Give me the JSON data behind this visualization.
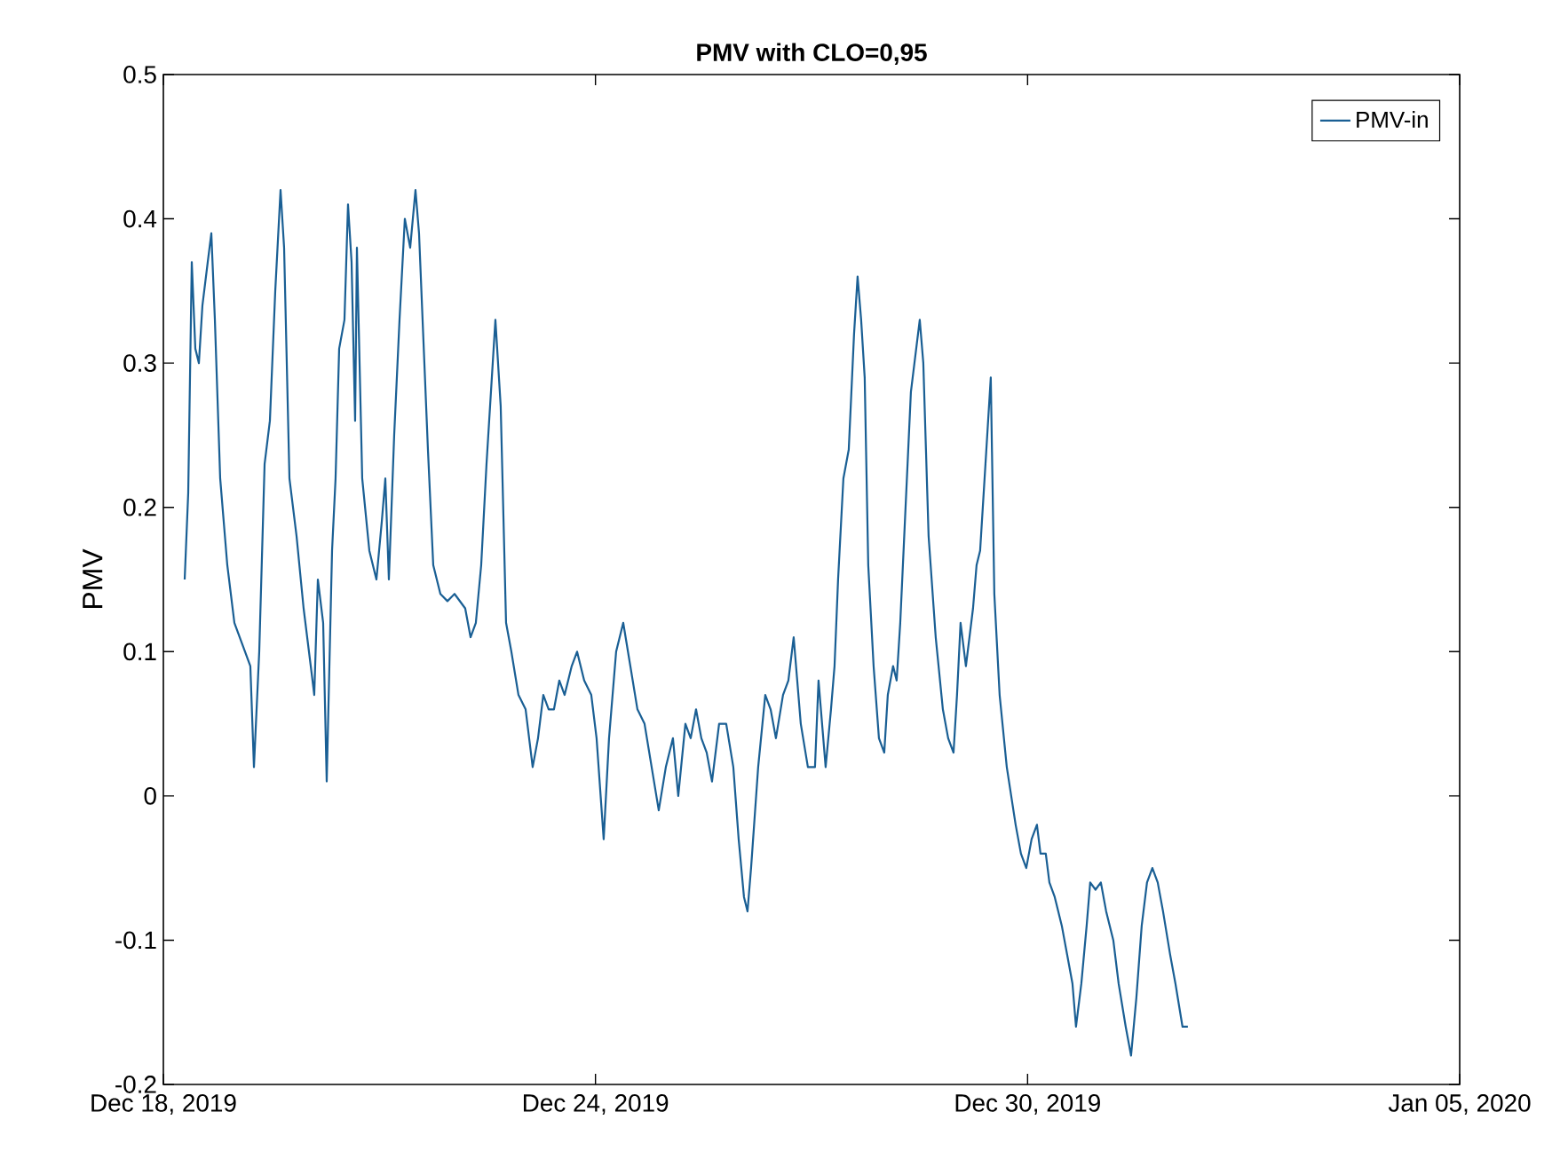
{
  "chart_data": {
    "type": "line",
    "title": "PMV with CLO=0,95",
    "ylabel": "PMV",
    "x": [
      "2019-12-18T07:06",
      "2019-12-18T08:17",
      "2019-12-18T09:28",
      "2019-12-18T10:39",
      "2019-12-18T11:50",
      "2019-12-18T13:01",
      "2019-12-18T14:47",
      "2019-12-18T15:59",
      "2019-12-18T17:10",
      "2019-12-18T18:56",
      "2019-12-18T21:18",
      "2019-12-18T23:40",
      "2019-12-19T03:13",
      "2019-12-19T04:59",
      "2019-12-19T06:11",
      "2019-12-19T07:57",
      "2019-12-19T09:44",
      "2019-12-19T11:30",
      "2019-12-19T13:17",
      "2019-12-19T15:03",
      "2019-12-19T16:14",
      "2019-12-19T18:01",
      "2019-12-19T20:23",
      "2019-12-19T22:44",
      "2019-12-20T01:07",
      "2019-12-20T02:17",
      "2019-12-20T03:29",
      "2019-12-20T05:15",
      "2019-12-20T06:26",
      "2019-12-20T08:13",
      "2019-12-20T09:23",
      "2019-12-20T10:35",
      "2019-12-20T12:21",
      "2019-12-20T13:32",
      "2019-12-20T14:43",
      "2019-12-20T15:54",
      "2019-12-20T16:30",
      "2019-12-20T18:16",
      "2019-12-20T20:38",
      "2019-12-20T23:00",
      "2019-12-21T00:47",
      "2019-12-21T01:58",
      "2019-12-21T03:09",
      "2019-12-21T04:55",
      "2019-12-21T06:42",
      "2019-12-21T08:28",
      "2019-12-21T10:15",
      "2019-12-21T12:01",
      "2019-12-21T13:12",
      "2019-12-21T14:23",
      "2019-12-21T16:10",
      "2019-12-21T17:56",
      "2019-12-21T20:19",
      "2019-12-21T22:40",
      "2019-12-22T01:02",
      "2019-12-22T04:35",
      "2019-12-22T06:22",
      "2019-12-22T08:08",
      "2019-12-22T09:55",
      "2019-12-22T11:41",
      "2019-12-22T14:39",
      "2019-12-22T16:25",
      "2019-12-22T18:12",
      "2019-12-22T19:58",
      "2019-12-22T22:20",
      "2019-12-23T00:43",
      "2019-12-23T03:04",
      "2019-12-23T04:51",
      "2019-12-23T06:37",
      "2019-12-23T08:24",
      "2019-12-23T10:10",
      "2019-12-23T11:57",
      "2019-12-23T13:43",
      "2019-12-23T16:05",
      "2019-12-23T17:52",
      "2019-12-23T20:14",
      "2019-12-23T22:36",
      "2019-12-24T00:22",
      "2019-12-24T02:44",
      "2019-12-24T04:31",
      "2019-12-24T06:53",
      "2019-12-24T09:15",
      "2019-12-24T11:37",
      "2019-12-24T13:59",
      "2019-12-24T16:21",
      "2019-12-24T18:43",
      "2019-12-24T21:05",
      "2019-12-24T23:27",
      "2019-12-25T01:49",
      "2019-12-25T03:35",
      "2019-12-25T05:58",
      "2019-12-25T07:44",
      "2019-12-25T09:31",
      "2019-12-25T11:17",
      "2019-12-25T13:04",
      "2019-12-25T14:50",
      "2019-12-25T17:12",
      "2019-12-25T19:34",
      "2019-12-25T21:56",
      "2019-12-25T23:43",
      "2019-12-26T01:29",
      "2019-12-26T02:40",
      "2019-12-26T03:51",
      "2019-12-26T06:13",
      "2019-12-26T08:35",
      "2019-12-26T10:22",
      "2019-12-26T12:08",
      "2019-12-26T14:30",
      "2019-12-26T16:17",
      "2019-12-26T18:03",
      "2019-12-26T20:25",
      "2019-12-26T22:47",
      "2019-12-27T01:09",
      "2019-12-27T02:20",
      "2019-12-27T03:31",
      "2019-12-27T04:42",
      "2019-12-27T06:29",
      "2019-12-27T07:40",
      "2019-12-27T08:51",
      "2019-12-27T10:37",
      "2019-12-27T12:24",
      "2019-12-27T14:10",
      "2019-12-27T15:21",
      "2019-12-27T16:32",
      "2019-12-27T17:43",
      "2019-12-27T18:54",
      "2019-12-27T20:41",
      "2019-12-27T22:28",
      "2019-12-28T00:14",
      "2019-12-28T01:25",
      "2019-12-28T03:11",
      "2019-12-28T04:22",
      "2019-12-28T05:34",
      "2019-12-28T07:20",
      "2019-12-28T09:07",
      "2019-12-28T10:53",
      "2019-12-28T12:04",
      "2019-12-28T13:15",
      "2019-12-28T15:01",
      "2019-12-28T17:23",
      "2019-12-28T19:46",
      "2019-12-28T21:32",
      "2019-12-28T23:19",
      "2019-12-29T00:29",
      "2019-12-29T01:40",
      "2019-12-29T03:27",
      "2019-12-29T04:38",
      "2019-12-29T05:49",
      "2019-12-29T07:00",
      "2019-12-29T08:11",
      "2019-12-29T09:58",
      "2019-12-29T11:44",
      "2019-12-29T12:55",
      "2019-12-29T14:41",
      "2019-12-29T17:04",
      "2019-12-29T20:01",
      "2019-12-29T21:47",
      "2019-12-29T23:34",
      "2019-12-30T01:20",
      "2019-12-30T03:07",
      "2019-12-30T04:18",
      "2019-12-30T06:04",
      "2019-12-30T07:16",
      "2019-12-30T09:02",
      "2019-12-30T11:24",
      "2019-12-30T13:11",
      "2019-12-30T14:57",
      "2019-12-30T16:08",
      "2019-12-30T17:55",
      "2019-12-30T19:41",
      "2019-12-30T20:52",
      "2019-12-30T22:38",
      "2019-12-31T00:25",
      "2019-12-31T02:11",
      "2019-12-31T04:34",
      "2019-12-31T06:20",
      "2019-12-31T08:42",
      "2019-12-31T10:29",
      "2019-12-31T12:15",
      "2019-12-31T14:02",
      "2019-12-31T15:48",
      "2019-12-31T17:35",
      "2019-12-31T19:22",
      "2019-12-31T21:08",
      "2019-12-31T23:30",
      "2020-01-01T01:16",
      "2020-01-01T03:38",
      "2020-01-01T05:25"
    ],
    "series": [
      {
        "name": "PMV-in",
        "color": "#1a5f94",
        "values": [
          0.15,
          0.21,
          0.37,
          0.31,
          0.3,
          0.34,
          0.37,
          0.39,
          0.33,
          0.22,
          0.16,
          0.12,
          0.1,
          0.09,
          0.02,
          0.1,
          0.23,
          0.26,
          0.35,
          0.42,
          0.38,
          0.22,
          0.18,
          0.13,
          0.09,
          0.07,
          0.15,
          0.12,
          0.01,
          0.17,
          0.22,
          0.31,
          0.33,
          0.41,
          0.37,
          0.26,
          0.38,
          0.22,
          0.17,
          0.15,
          0.19,
          0.22,
          0.15,
          0.25,
          0.33,
          0.4,
          0.38,
          0.42,
          0.39,
          0.33,
          0.24,
          0.16,
          0.14,
          0.135,
          0.14,
          0.13,
          0.11,
          0.12,
          0.16,
          0.23,
          0.33,
          0.27,
          0.12,
          0.1,
          0.07,
          0.06,
          0.02,
          0.04,
          0.07,
          0.06,
          0.06,
          0.08,
          0.07,
          0.09,
          0.1,
          0.08,
          0.07,
          0.04,
          -0.03,
          0.04,
          0.1,
          0.12,
          0.09,
          0.06,
          0.05,
          0.02,
          -0.01,
          0.02,
          0.04,
          0.0,
          0.05,
          0.04,
          0.06,
          0.04,
          0.03,
          0.01,
          0.05,
          0.05,
          0.02,
          -0.03,
          -0.07,
          -0.08,
          -0.05,
          0.02,
          0.07,
          0.06,
          0.04,
          0.07,
          0.08,
          0.11,
          0.05,
          0.02,
          0.02,
          0.08,
          0.05,
          0.02,
          0.06,
          0.09,
          0.15,
          0.22,
          0.24,
          0.32,
          0.36,
          0.33,
          0.29,
          0.16,
          0.09,
          0.04,
          0.03,
          0.07,
          0.09,
          0.08,
          0.12,
          0.2,
          0.28,
          0.31,
          0.33,
          0.3,
          0.18,
          0.11,
          0.06,
          0.04,
          0.03,
          0.07,
          0.12,
          0.09,
          0.11,
          0.13,
          0.16,
          0.17,
          0.23,
          0.29,
          0.14,
          0.07,
          0.02,
          -0.02,
          -0.04,
          -0.05,
          -0.03,
          -0.02,
          -0.04,
          -0.04,
          -0.06,
          -0.07,
          -0.09,
          -0.11,
          -0.13,
          -0.16,
          -0.13,
          -0.09,
          -0.06,
          -0.065,
          -0.06,
          -0.08,
          -0.1,
          -0.13,
          -0.16,
          -0.18,
          -0.14,
          -0.09,
          -0.06,
          -0.05,
          -0.06,
          -0.08,
          -0.11,
          -0.13,
          -0.16,
          -0.16
        ]
      }
    ],
    "xlim": [
      "2019-12-18",
      "2020-01-05"
    ],
    "xticks": [
      {
        "value": "2019-12-18",
        "label": "Dec 18, 2019"
      },
      {
        "value": "2019-12-24",
        "label": "Dec 24, 2019"
      },
      {
        "value": "2019-12-30",
        "label": "Dec 30, 2019"
      },
      {
        "value": "2020-01-05",
        "label": "Jan 05, 2020"
      }
    ],
    "ylim": [
      -0.2,
      0.5
    ],
    "yticks": [
      -0.2,
      -0.1,
      0,
      0.1,
      0.2,
      0.3,
      0.4,
      0.5
    ],
    "legend": "top right",
    "grid": false,
    "marker": "none",
    "line_style": "solid"
  }
}
